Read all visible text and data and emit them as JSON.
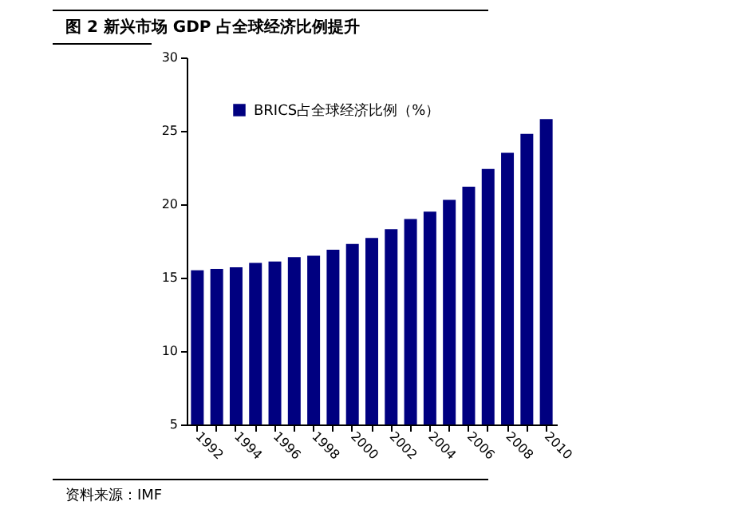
{
  "chart_data": {
    "type": "bar",
    "title": "图 2 新兴市场 GDP 占全球经济比例提升",
    "categories": [
      "1992",
      null,
      "1994",
      null,
      "1996",
      null,
      "1998",
      null,
      "2000",
      null,
      "2002",
      null,
      "2004",
      null,
      "2006",
      null,
      "2008",
      null,
      "2010"
    ],
    "series": [
      {
        "name": "BRICS占全球经济比例（%）",
        "color": "#000080",
        "values": [
          15.5,
          15.6,
          15.7,
          16.0,
          16.1,
          16.4,
          16.5,
          16.9,
          17.3,
          17.7,
          18.3,
          19.0,
          19.5,
          20.3,
          21.2,
          22.4,
          23.5,
          24.8,
          25.8
        ]
      }
    ],
    "ylim": [
      5,
      30
    ],
    "yticks": [
      5,
      10,
      15,
      20,
      25,
      30
    ],
    "grid": false,
    "legend": "top left",
    "annotations": [
      "资料来源：IMF"
    ]
  }
}
